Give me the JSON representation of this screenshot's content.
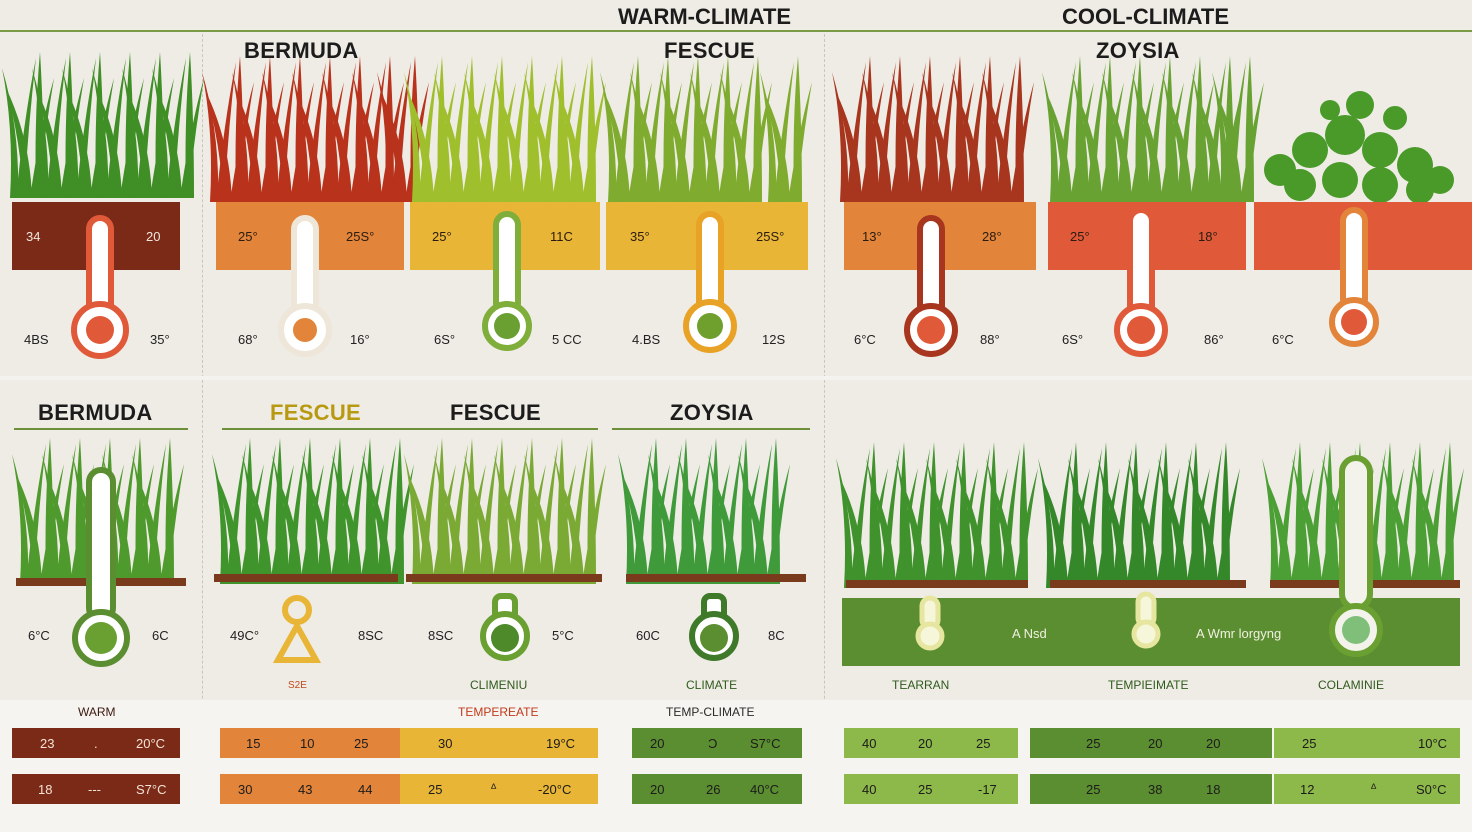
{
  "top_headers": {
    "warm": "WARM-CLIMATE",
    "cool": "COOL-CLIMATE"
  },
  "colors": {
    "maroon": "#7a2a16",
    "orange": "#e2843a",
    "yellow": "#e8b536",
    "red": "#e05a3a",
    "green_dark": "#5b8d31",
    "green_light": "#8db84a",
    "grass": "#4e9a2c"
  },
  "upper": {
    "titles": [
      "BERMUDA",
      "FESCUE",
      "ZOYSIA"
    ],
    "bands": [
      {
        "left": "34",
        "right": "20"
      },
      {
        "left": "25°",
        "right": "25S°"
      },
      {
        "left": "25°",
        "right": "11C"
      },
      {
        "left": "35°",
        "right": "25S°"
      },
      {
        "left": "13°",
        "right": "28°"
      },
      {
        "left": "25°",
        "right": "18°"
      }
    ],
    "lows": [
      {
        "left": "4BS",
        "right": "35°"
      },
      {
        "left": "68°",
        "right": "16°"
      },
      {
        "left": "6S°",
        "right": "5 CC"
      },
      {
        "left": "4.BS",
        "right": "12S"
      },
      {
        "left": "6°C",
        "right": "88°"
      },
      {
        "left": "6S°",
        "right": "86°"
      },
      {
        "left": "6°C",
        "right": ""
      }
    ]
  },
  "lower": {
    "titles": [
      "BERMUDA",
      "FESCUE",
      "FESCUE",
      "ZOYSIA"
    ],
    "lows": [
      {
        "left": "6°C",
        "right": "6C"
      },
      {
        "left": "49C°",
        "right": "8SC"
      },
      {
        "left": "8SC",
        "right": "5°C"
      },
      {
        "left": "60C",
        "right": "8C"
      }
    ],
    "captions": [
      "S2E",
      "CLIMENIU",
      "CLIMATE"
    ],
    "green_band": {
      "a": "A Nsd",
      "b": "A Wmr lorgyng"
    },
    "cool_captions": [
      "TEARRAN",
      "TEMPIEIMATE",
      "COLAMINIE"
    ]
  },
  "tables": {
    "warm_title": "WARM",
    "temp_title": "TEMPEREATE",
    "tempclim_title": "TEMP-CLIMATE",
    "row1": {
      "a": [
        "23",
        ".",
        "20°C"
      ],
      "b": [
        "15",
        "10",
        "25",
        "30",
        "19°C"
      ],
      "c": [
        "20",
        "Ɔ",
        "S7°C"
      ],
      "d": [
        "40",
        "20",
        "25"
      ],
      "e": [
        "25",
        "20",
        "20"
      ],
      "f": [
        "25",
        "10°C"
      ]
    },
    "row2": {
      "a": [
        "18",
        "---",
        "S7°C"
      ],
      "b": [
        "30",
        "43",
        "44",
        "25",
        "ᐞ",
        "-20°C"
      ],
      "c": [
        "20",
        "26",
        "40°C"
      ],
      "d": [
        "40",
        "25",
        "-17"
      ],
      "e": [
        "25",
        "38",
        "18"
      ],
      "f": [
        "12",
        "ᐞ",
        "S0°C"
      ]
    }
  }
}
